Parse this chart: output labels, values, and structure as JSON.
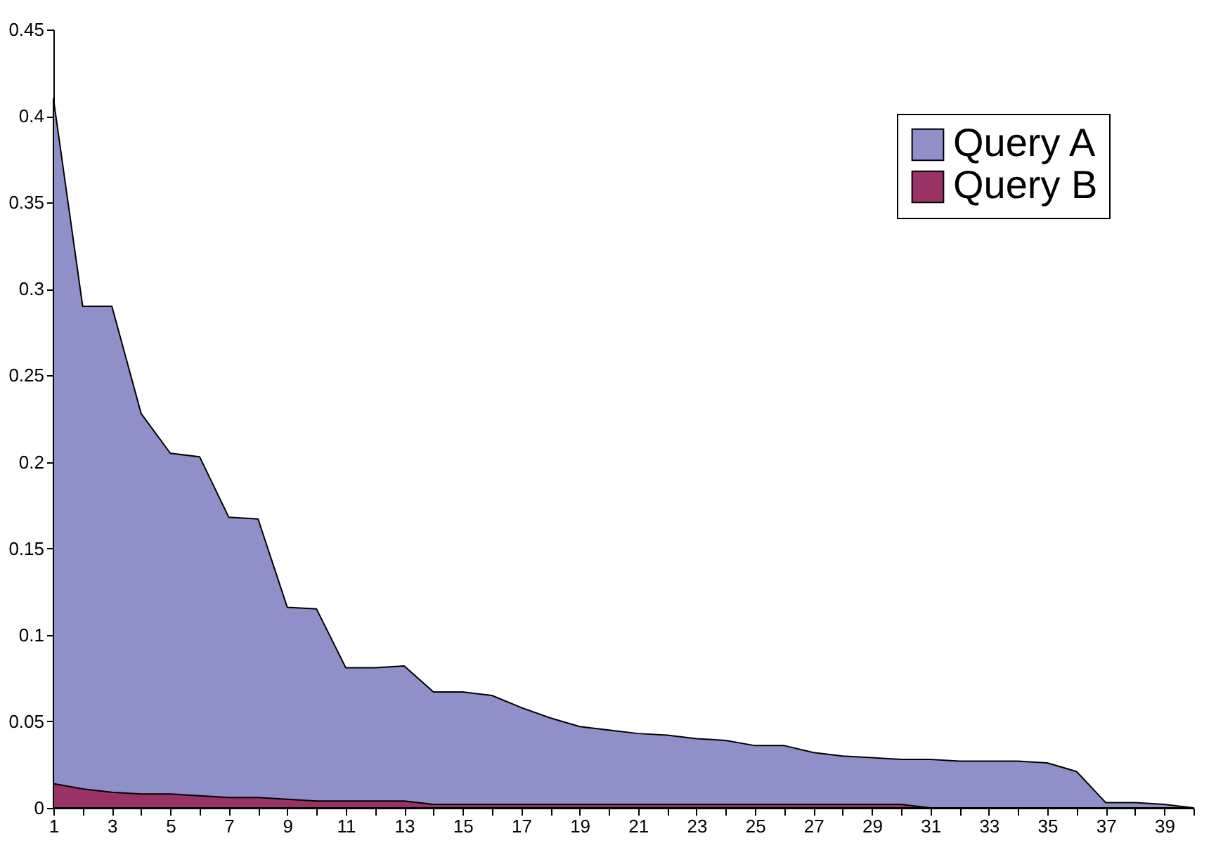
{
  "chart_data": {
    "type": "area",
    "x": [
      1,
      2,
      3,
      4,
      5,
      6,
      7,
      8,
      9,
      10,
      11,
      12,
      13,
      14,
      15,
      16,
      17,
      18,
      19,
      20,
      21,
      22,
      23,
      24,
      25,
      26,
      27,
      28,
      29,
      30,
      31,
      32,
      33,
      34,
      35,
      36,
      37,
      38,
      39,
      40
    ],
    "series": [
      {
        "name": "Query A",
        "color": "#9090c8",
        "values": [
          0.41,
          0.29,
          0.29,
          0.228,
          0.205,
          0.203,
          0.168,
          0.167,
          0.116,
          0.115,
          0.081,
          0.081,
          0.082,
          0.067,
          0.067,
          0.065,
          0.058,
          0.052,
          0.047,
          0.045,
          0.043,
          0.042,
          0.04,
          0.039,
          0.036,
          0.036,
          0.032,
          0.03,
          0.029,
          0.028,
          0.028,
          0.027,
          0.027,
          0.027,
          0.026,
          0.021,
          0.003,
          0.003,
          0.002,
          0
        ]
      },
      {
        "name": "Query B",
        "color": "#993366",
        "values": [
          0.014,
          0.011,
          0.009,
          0.008,
          0.008,
          0.007,
          0.006,
          0.006,
          0.005,
          0.004,
          0.004,
          0.004,
          0.004,
          0.002,
          0.002,
          0.002,
          0.002,
          0.002,
          0.002,
          0.002,
          0.002,
          0.002,
          0.002,
          0.002,
          0.002,
          0.002,
          0.002,
          0.002,
          0.002,
          0.002,
          0,
          0,
          0,
          0,
          0,
          0,
          0,
          0,
          0,
          0
        ]
      }
    ],
    "xlim": [
      1,
      40
    ],
    "xticks": [
      1,
      {
        "value": 2,
        "label": null
      },
      3,
      {
        "value": 4,
        "label": null
      },
      5,
      {
        "value": 6,
        "label": null
      },
      7,
      {
        "value": 8,
        "label": null
      },
      9,
      {
        "value": 10,
        "label": null
      },
      11,
      {
        "value": 12,
        "label": null
      },
      13,
      {
        "value": 14,
        "label": null
      },
      15,
      {
        "value": 16,
        "label": null
      },
      17,
      {
        "value": 18,
        "label": null
      },
      19,
      {
        "value": 20,
        "label": null
      },
      21,
      {
        "value": 22,
        "label": null
      },
      23,
      {
        "value": 24,
        "label": null
      },
      25,
      {
        "value": 26,
        "label": null
      },
      27,
      {
        "value": 28,
        "label": null
      },
      29,
      {
        "value": 30,
        "label": null
      },
      31,
      {
        "value": 32,
        "label": null
      },
      33,
      {
        "value": 34,
        "label": null
      },
      35,
      {
        "value": 36,
        "label": null
      },
      37,
      {
        "value": 38,
        "label": null
      },
      39,
      {
        "value": 40,
        "label": null
      }
    ],
    "ylim": [
      0,
      0.45
    ],
    "yticks": [
      0,
      0.05,
      0.1,
      0.15,
      0.2,
      0.25,
      0.3,
      0.35,
      0.4,
      0.45
    ],
    "grid": false,
    "legend": "top right"
  }
}
